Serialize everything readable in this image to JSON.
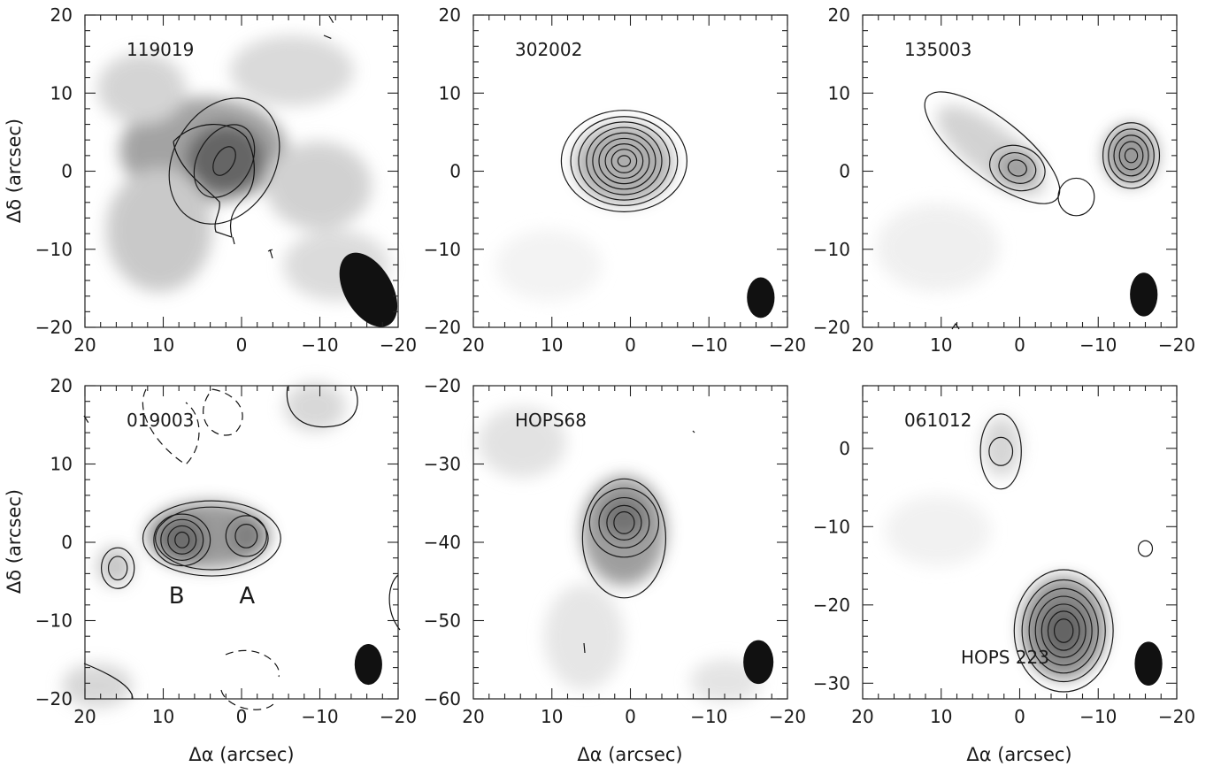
{
  "chart_data": {
    "type": "contour",
    "xlabel": "Δα (arcsec)",
    "ylabel": "Δδ (arcsec)",
    "panels": [
      {
        "name": "119019",
        "xlim": [
          20,
          -20
        ],
        "ylim": [
          -20,
          20
        ],
        "xticks": [
          20,
          10,
          0,
          -10,
          -20
        ],
        "yticks": [
          20,
          10,
          0,
          -10,
          -20
        ],
        "xtick_labels": [
          "20",
          "10",
          "0",
          "−10",
          "−20"
        ],
        "ytick_labels": [
          "20",
          "10",
          "0",
          "−10",
          "−20"
        ],
        "sources": [
          {
            "x": 2.2,
            "y": 1.3,
            "peak_levels": 3,
            "levels": [
              {
                "rx": 8.5,
                "ry": 6.5,
                "rot": -60
              },
              {
                "rx": 5.0,
                "ry": 3.4,
                "rot": -60
              },
              {
                "rx": 2.0,
                "ry": 1.2,
                "rot": -60
              }
            ]
          }
        ],
        "beam": {
          "x": -16.2,
          "y": -15.2,
          "bmaj": 5.2,
          "bmin": 3.8,
          "pa": 30
        },
        "annotations": []
      },
      {
        "name": "302002",
        "xlim": [
          20,
          -20
        ],
        "ylim": [
          -20,
          20
        ],
        "xticks": [
          20,
          10,
          0,
          -10,
          -20
        ],
        "yticks": [
          20,
          10,
          0,
          -10,
          -20
        ],
        "xtick_labels": [
          "20",
          "10",
          "0",
          "−10",
          "−20"
        ],
        "ytick_labels": [
          "20",
          "10",
          "0",
          "−10",
          "−20"
        ],
        "sources": [
          {
            "x": 0.8,
            "y": 1.3,
            "levels": [
              {
                "rx": 8.0,
                "ry": 6.5,
                "rot": 0
              },
              {
                "rx": 6.8,
                "ry": 5.7,
                "rot": 0
              },
              {
                "rx": 5.8,
                "ry": 5.0,
                "rot": 0
              },
              {
                "rx": 4.8,
                "ry": 4.3,
                "rot": 0
              },
              {
                "rx": 4.0,
                "ry": 3.6,
                "rot": 0
              },
              {
                "rx": 3.2,
                "ry": 2.9,
                "rot": 0
              },
              {
                "rx": 2.4,
                "ry": 2.2,
                "rot": 0
              },
              {
                "rx": 1.6,
                "ry": 1.5,
                "rot": 0
              },
              {
                "rx": 0.8,
                "ry": 0.7,
                "rot": 0
              }
            ]
          }
        ],
        "beam": {
          "x": -16.6,
          "y": -16.2,
          "bmaj": 2.6,
          "bmin": 2.2,
          "pa": 0
        },
        "annotations": []
      },
      {
        "name": "135003",
        "xlim": [
          20,
          -20
        ],
        "ylim": [
          -20,
          20
        ],
        "xticks": [
          20,
          10,
          0,
          -10,
          -20
        ],
        "yticks": [
          20,
          10,
          0,
          -10,
          -20
        ],
        "xtick_labels": [
          "20",
          "10",
          "0",
          "−10",
          "−20"
        ],
        "ytick_labels": [
          "20",
          "10",
          "0",
          "−10",
          "−20"
        ],
        "sources": [
          {
            "x": 3.5,
            "y": 3.0,
            "levels": [
              {
                "rx": 10.5,
                "ry": 3.8,
                "rot": 38
              }
            ]
          },
          {
            "x": 0.3,
            "y": 0.4,
            "levels": [
              {
                "rx": 3.6,
                "ry": 2.8,
                "rot": 20
              },
              {
                "rx": 2.4,
                "ry": 1.9,
                "rot": 20
              },
              {
                "rx": 1.2,
                "ry": 1.0,
                "rot": 20
              }
            ]
          },
          {
            "x": -7.2,
            "y": -3.3,
            "levels": [
              {
                "rx": 2.3,
                "ry": 2.4,
                "rot": 0
              }
            ]
          },
          {
            "x": -14.2,
            "y": 2.0,
            "levels": [
              {
                "rx": 3.6,
                "ry": 4.2,
                "rot": 0
              },
              {
                "rx": 2.9,
                "ry": 3.4,
                "rot": 0
              },
              {
                "rx": 2.2,
                "ry": 2.6,
                "rot": 0
              },
              {
                "rx": 1.5,
                "ry": 1.8,
                "rot": 0
              },
              {
                "rx": 0.8,
                "ry": 0.9,
                "rot": 0
              }
            ]
          }
        ],
        "beam": {
          "x": -15.8,
          "y": -15.8,
          "bmaj": 2.8,
          "bmin": 2.2,
          "pa": 0
        },
        "annotations": []
      },
      {
        "name": "019003",
        "xlim": [
          20,
          -20
        ],
        "ylim": [
          -20,
          20
        ],
        "xticks": [
          20,
          10,
          0,
          -10,
          -20
        ],
        "yticks": [
          20,
          10,
          0,
          -10,
          -20
        ],
        "xtick_labels": [
          "20",
          "10",
          "0",
          "−10",
          "−20"
        ],
        "ytick_labels": [
          "20",
          "10",
          "0",
          "−10",
          "−20"
        ],
        "sources": [
          {
            "x": 3.8,
            "y": 0.5,
            "levels": [
              {
                "rx": 8.8,
                "ry": 4.8,
                "rot": 0
              },
              {
                "rx": 7.2,
                "ry": 4.0,
                "rot": 0
              }
            ]
          },
          {
            "x": 7.6,
            "y": 0.3,
            "levels": [
              {
                "rx": 3.6,
                "ry": 3.3,
                "rot": 0
              },
              {
                "rx": 2.7,
                "ry": 2.6,
                "rot": 0
              },
              {
                "rx": 1.8,
                "ry": 1.8,
                "rot": 0
              },
              {
                "rx": 0.9,
                "ry": 1.0,
                "rot": 0
              }
            ]
          },
          {
            "x": -0.6,
            "y": 0.8,
            "levels": [
              {
                "rx": 2.6,
                "ry": 2.6,
                "rot": 0
              },
              {
                "rx": 1.4,
                "ry": 1.5,
                "rot": 0
              }
            ]
          },
          {
            "x": 15.8,
            "y": -3.3,
            "levels": [
              {
                "rx": 2.1,
                "ry": 2.6,
                "rot": 0
              },
              {
                "rx": 1.2,
                "ry": 1.5,
                "rot": 0
              }
            ]
          }
        ],
        "beam": {
          "x": -16.2,
          "y": -15.6,
          "bmaj": 2.6,
          "bmin": 2.2,
          "pa": 0
        },
        "annotations": [
          {
            "text": "B",
            "x": 9.3,
            "y": -7.8
          },
          {
            "text": "A",
            "x": 0.3,
            "y": -7.8
          }
        ]
      },
      {
        "name": "HOPS68",
        "xlim": [
          20,
          -20
        ],
        "ylim": [
          -60,
          -20
        ],
        "xticks": [
          20,
          10,
          0,
          -10,
          -20
        ],
        "yticks": [
          -20,
          -30,
          -40,
          -50,
          -60
        ],
        "xtick_labels": [
          "20",
          "10",
          "0",
          "−10",
          "−20"
        ],
        "ytick_labels": [
          "−20",
          "−30",
          "−40",
          "−50",
          "−60"
        ],
        "sources": [
          {
            "x": 0.8,
            "y": -39.5,
            "levels": [
              {
                "rx": 5.3,
                "ry": 7.6,
                "rot": 0
              }
            ]
          },
          {
            "x": 0.8,
            "y": -37.5,
            "levels": [
              {
                "rx": 4.4,
                "ry": 4.4,
                "rot": 0
              },
              {
                "rx": 3.2,
                "ry": 3.2,
                "rot": 0
              },
              {
                "rx": 2.2,
                "ry": 2.2,
                "rot": 0
              },
              {
                "rx": 1.3,
                "ry": 1.4,
                "rot": 0
              }
            ]
          }
        ],
        "beam": {
          "x": -16.3,
          "y": -55.3,
          "bmaj": 2.8,
          "bmin": 2.4,
          "pa": 0
        },
        "annotations": []
      },
      {
        "name": "061012",
        "xlim": [
          20,
          -20
        ],
        "ylim": [
          -32,
          8
        ],
        "xticks": [
          20,
          10,
          0,
          -10,
          -20
        ],
        "yticks": [
          0,
          -10,
          -20,
          -30
        ],
        "xtick_labels": [
          "20",
          "10",
          "0",
          "−10",
          "−20"
        ],
        "ytick_labels": [
          "0",
          "−10",
          "−20",
          "−30"
        ],
        "sources": [
          {
            "x": 2.4,
            "y": -0.4,
            "levels": [
              {
                "rx": 2.6,
                "ry": 4.8,
                "rot": 0
              },
              {
                "rx": 1.5,
                "ry": 1.8,
                "rot": 0
              }
            ]
          },
          {
            "x": -16.0,
            "y": -12.8,
            "levels": [
              {
                "rx": 0.9,
                "ry": 1.0,
                "rot": 0
              }
            ]
          },
          {
            "x": -5.6,
            "y": -23.3,
            "levels": [
              {
                "rx": 6.3,
                "ry": 7.8,
                "rot": 0
              },
              {
                "rx": 5.3,
                "ry": 6.5,
                "rot": 0
              },
              {
                "rx": 4.4,
                "ry": 5.4,
                "rot": 0
              },
              {
                "rx": 3.6,
                "ry": 4.4,
                "rot": 0
              },
              {
                "rx": 2.8,
                "ry": 3.4,
                "rot": 0
              },
              {
                "rx": 2.0,
                "ry": 2.5,
                "rot": 0
              },
              {
                "rx": 1.2,
                "ry": 1.5,
                "rot": 0
              }
            ]
          }
        ],
        "beam": {
          "x": -16.4,
          "y": -27.5,
          "bmaj": 2.8,
          "bmin": 2.2,
          "pa": 0
        },
        "annotations": [
          {
            "text": "HOPS 223",
            "x": 7.5,
            "y": -27.5
          }
        ]
      }
    ]
  }
}
